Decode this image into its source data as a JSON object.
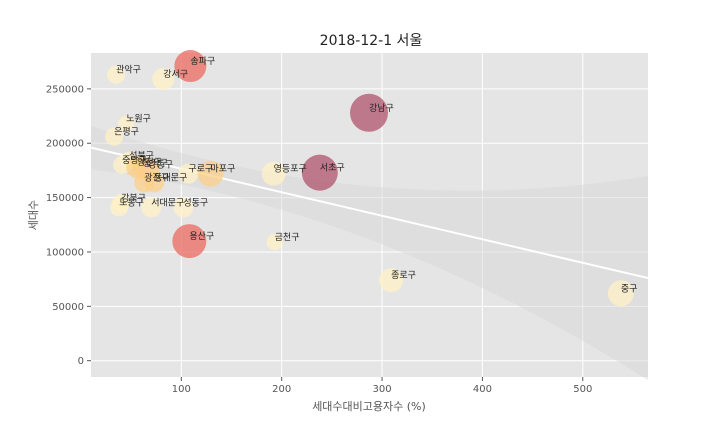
{
  "chart_data": {
    "type": "scatter",
    "title": "2018-12-1 서울",
    "xlabel": "세대수대비고용자수 (%)",
    "ylabel": "세대수",
    "xlim": [
      10,
      565
    ],
    "ylim": [
      -15000,
      283000
    ],
    "x_ticks": [
      100,
      200,
      300,
      400,
      500
    ],
    "y_ticks": [
      0,
      50000,
      100000,
      150000,
      200000,
      250000
    ],
    "grid": true,
    "background": "#e5e5e5",
    "trend_line": {
      "x": [
        10,
        565
      ],
      "y": [
        196000,
        76000
      ],
      "color": "#ffffff"
    },
    "colors": {
      "low": "#fff2c6",
      "mid": "#fbcf8a",
      "high": "#ea6a60",
      "top": "#b0536c"
    },
    "points": [
      {
        "name": "관악구",
        "x": 35,
        "y": 263000,
        "size": 9,
        "level": "low"
      },
      {
        "name": "송파구",
        "x": 109,
        "y": 271000,
        "size": 16,
        "level": "high"
      },
      {
        "name": "강서구",
        "x": 82,
        "y": 259000,
        "size": 11,
        "level": "low"
      },
      {
        "name": "강남구",
        "x": 287,
        "y": 228000,
        "size": 19,
        "level": "top"
      },
      {
        "name": "노원구",
        "x": 45,
        "y": 218000,
        "size": 8,
        "level": "low"
      },
      {
        "name": "은평구",
        "x": 33,
        "y": 206000,
        "size": 9,
        "level": "low"
      },
      {
        "name": "성북구",
        "x": 48,
        "y": 184000,
        "size": 9,
        "level": "low"
      },
      {
        "name": "중랑구",
        "x": 41,
        "y": 180000,
        "size": 9,
        "level": "low"
      },
      {
        "name": "양천구",
        "x": 56,
        "y": 178000,
        "size": 11,
        "level": "mid"
      },
      {
        "name": "동작구",
        "x": 62,
        "y": 177000,
        "size": 11,
        "level": "mid"
      },
      {
        "name": "강동구",
        "x": 67,
        "y": 176000,
        "size": 11,
        "level": "mid"
      },
      {
        "name": "구로구",
        "x": 107,
        "y": 172000,
        "size": 10,
        "level": "low"
      },
      {
        "name": "마포구",
        "x": 129,
        "y": 172000,
        "size": 13,
        "level": "mid"
      },
      {
        "name": "영등포구",
        "x": 192,
        "y": 172000,
        "size": 12,
        "level": "low"
      },
      {
        "name": "서초구",
        "x": 238,
        "y": 173000,
        "size": 18,
        "level": "top"
      },
      {
        "name": "광진구",
        "x": 63,
        "y": 164000,
        "size": 10,
        "level": "mid"
      },
      {
        "name": "동대문구",
        "x": 73,
        "y": 164000,
        "size": 10,
        "level": "mid"
      },
      {
        "name": "강북구",
        "x": 40,
        "y": 145000,
        "size": 9,
        "level": "low"
      },
      {
        "name": "도봉구",
        "x": 38,
        "y": 141000,
        "size": 9,
        "level": "low"
      },
      {
        "name": "서대문구",
        "x": 70,
        "y": 141000,
        "size": 10,
        "level": "low"
      },
      {
        "name": "성동구",
        "x": 102,
        "y": 141000,
        "size": 10,
        "level": "low"
      },
      {
        "name": "용산구",
        "x": 108,
        "y": 110000,
        "size": 17,
        "level": "high"
      },
      {
        "name": "금천구",
        "x": 193,
        "y": 109000,
        "size": 8,
        "level": "low"
      },
      {
        "name": "종로구",
        "x": 309,
        "y": 74000,
        "size": 12,
        "level": "low"
      },
      {
        "name": "중구",
        "x": 538,
        "y": 62000,
        "size": 13,
        "level": "low"
      }
    ]
  }
}
